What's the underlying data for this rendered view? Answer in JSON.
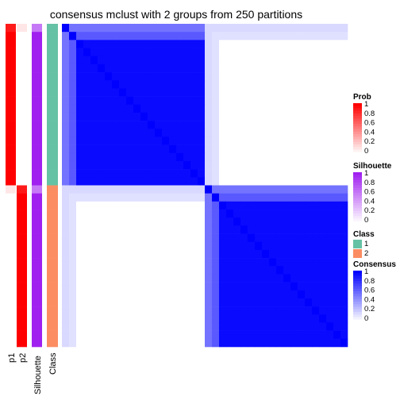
{
  "chart_data": {
    "type": "heatmap",
    "title": "consensus mclust with 2 groups from 250 partitions",
    "annotation_columns": [
      "p1",
      "p2",
      "Silhouette",
      "Class"
    ],
    "n_samples": 40,
    "row_order": {
      "group_sizes": [
        20,
        20
      ],
      "rows_per_sample": 1
    },
    "class_assignment": [
      1,
      1,
      1,
      1,
      1,
      1,
      1,
      1,
      1,
      1,
      1,
      1,
      1,
      1,
      1,
      1,
      1,
      1,
      1,
      1,
      2,
      2,
      2,
      2,
      2,
      2,
      2,
      2,
      2,
      2,
      2,
      2,
      2,
      2,
      2,
      2,
      2,
      2,
      2,
      2
    ],
    "p1_values": [
      0.9,
      1,
      1,
      1,
      1,
      1,
      1,
      1,
      1,
      1,
      1,
      1,
      1,
      1,
      1,
      1,
      1,
      1,
      1,
      1,
      0.1,
      0,
      0,
      0,
      0,
      0,
      0,
      0,
      0,
      0,
      0,
      0,
      0,
      0,
      0,
      0,
      0,
      0,
      0,
      0
    ],
    "p2_values": [
      0.1,
      0,
      0,
      0,
      0,
      0,
      0,
      0,
      0,
      0,
      0,
      0,
      0,
      0,
      0,
      0,
      0,
      0,
      0,
      0,
      0.9,
      1,
      1,
      1,
      1,
      1,
      1,
      1,
      1,
      1,
      1,
      1,
      1,
      1,
      1,
      1,
      1,
      1,
      1,
      1
    ],
    "silhouette_values": [
      0.6,
      1,
      1,
      1,
      1,
      1,
      1,
      1,
      1,
      1,
      1,
      1,
      1,
      1,
      1,
      1,
      1,
      1,
      1,
      1,
      0.6,
      1,
      1,
      1,
      1,
      1,
      1,
      1,
      1,
      1,
      1,
      1,
      1,
      1,
      1,
      1,
      1,
      1,
      1,
      1
    ],
    "consensus_description": "block diagonal: ~1 within group, ~0 between groups",
    "legends": [
      {
        "title": "Prob",
        "ticks": [
          "1",
          "0.8",
          "0.6",
          "0.4",
          "0.2",
          "0"
        ],
        "color_high": "#ff0000",
        "color_low": "#ffffff"
      },
      {
        "title": "Silhouette",
        "ticks": [
          "1",
          "0.8",
          "0.6",
          "0.4",
          "0.2",
          "0"
        ],
        "color_high": "#a020f0",
        "color_low": "#ffffff"
      },
      {
        "title": "Class",
        "entries": [
          {
            "label": "1",
            "color": "#66c2a5"
          },
          {
            "label": "2",
            "color": "#fc8d62"
          }
        ]
      },
      {
        "title": "Consensus",
        "ticks": [
          "1",
          "0.8",
          "0.6",
          "0.4",
          "0.2",
          "0"
        ],
        "color_high": "#0000ff",
        "color_low": "#ffffff"
      }
    ]
  }
}
